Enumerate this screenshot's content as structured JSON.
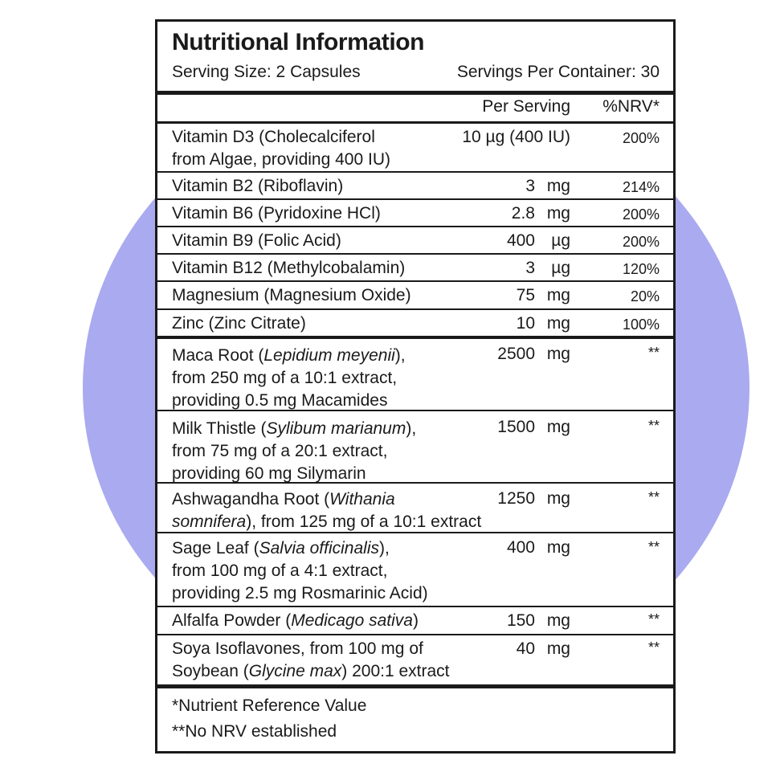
{
  "header": {
    "title": "Nutritional Information",
    "serving_size": "Serving Size: 2 Capsules",
    "servings_per_container": "Servings Per Container: 30"
  },
  "columns": {
    "per_serving": "Per Serving",
    "nrv": "%NRV*"
  },
  "vitamins": [
    {
      "name": "Vitamin D3 (Cholecalciferol from Algae, providing 400 IU)",
      "line1": "Vitamin D3 (Cholecalciferol",
      "line2": "from Algae, providing 400 IU)",
      "amount": "10 µg (400 IU)",
      "unit": "",
      "nrv": "200%"
    },
    {
      "name": "Vitamin B2 (Riboflavin)",
      "amount": "3",
      "unit": "mg",
      "nrv": "214%"
    },
    {
      "name": "Vitamin B6 (Pyridoxine HCl)",
      "amount": "2.8",
      "unit": "mg",
      "nrv": "200%"
    },
    {
      "name": "Vitamin B9 (Folic Acid)",
      "amount": "400",
      "unit": "µg",
      "nrv": "200%"
    },
    {
      "name": "Vitamin B12 (Methylcobalamin)",
      "amount": "3",
      "unit": "µg",
      "nrv": "120%"
    },
    {
      "name": "Magnesium (Magnesium Oxide)",
      "amount": "75",
      "unit": "mg",
      "nrv": "20%"
    },
    {
      "name": "Zinc (Zinc Citrate)",
      "amount": "10",
      "unit": "mg",
      "nrv": "100%"
    }
  ],
  "botanicals": [
    {
      "pre": "Maca Root (",
      "latin": "Lepidium meyenii",
      "post": "),",
      "line2": "from 250 mg of a 10:1 extract,",
      "line3": "providing 0.5 mg Macamides",
      "amount": "2500",
      "unit": "mg",
      "nrv": "**"
    },
    {
      "pre": "Milk Thistle (",
      "latin": "Sylibum marianum",
      "post": "),",
      "line2": "from 75 mg of a 20:1 extract,",
      "line3": "providing 60 mg Silymarin",
      "amount": "1500",
      "unit": "mg",
      "nrv": "**"
    },
    {
      "pre": "Ashwagandha Root (",
      "latin": "Withania",
      "latin2": "somnifera",
      "post2": "), from 125 mg of a 10:1 extract",
      "amount": "1250",
      "unit": "mg",
      "nrv": "**"
    },
    {
      "pre": "Sage Leaf (",
      "latin": "Salvia officinalis",
      "post": "),",
      "line2": "from 100 mg of a 4:1 extract,",
      "line3": "providing 2.5 mg Rosmarinic Acid)",
      "amount": "400",
      "unit": "mg",
      "nrv": "**"
    },
    {
      "pre": "Alfalfa Powder (",
      "latin": "Medicago sativa",
      "post": ")",
      "amount": "150",
      "unit": "mg",
      "nrv": "**"
    },
    {
      "line1": "Soya Isoflavones, from 100 mg of",
      "pre2": "Soybean (",
      "latin2": "Glycine max",
      "post2": ") 200:1 extract",
      "amount": "40",
      "unit": "mg",
      "nrv": "**"
    }
  ],
  "footnotes": [
    "*Nutrient Reference Value",
    "**No NRV established"
  ],
  "colors": {
    "background_circle": "#a9aaef",
    "ink": "#1a1a1a"
  }
}
